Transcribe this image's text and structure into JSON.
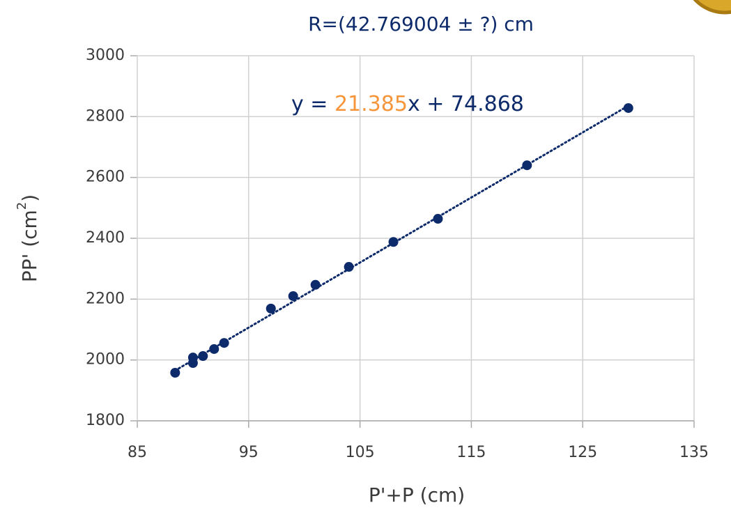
{
  "chart_data": {
    "type": "scatter",
    "title": "R=(42.769004 ± ?) cm",
    "x_label": "P'+P (cm)",
    "y_label": {
      "base": "PP' (cm",
      "sup": "2",
      "end": ")"
    },
    "color": "#0d2a6b",
    "x": [
      88.4,
      90,
      90,
      90.9,
      91.9,
      92.8,
      97,
      99,
      101,
      104,
      108,
      112,
      120,
      129.1
    ],
    "values": [
      1958,
      2008,
      1990,
      2013,
      2036,
      2056,
      2169,
      2210,
      2247,
      2306,
      2388,
      2464,
      2640,
      2828
    ],
    "xlim": [
      85,
      135
    ],
    "xticks": [
      85,
      95,
      105,
      115,
      125,
      135
    ],
    "ylim": [
      1800,
      3000
    ],
    "yticks": [
      1800,
      2000,
      2200,
      2400,
      2600,
      2800,
      3000
    ],
    "grid": true,
    "trendline": {
      "prefix": "y = ",
      "slope": 21.385,
      "middle": "x + ",
      "intercept": 74.868,
      "slope_color": "#f7953b"
    }
  }
}
